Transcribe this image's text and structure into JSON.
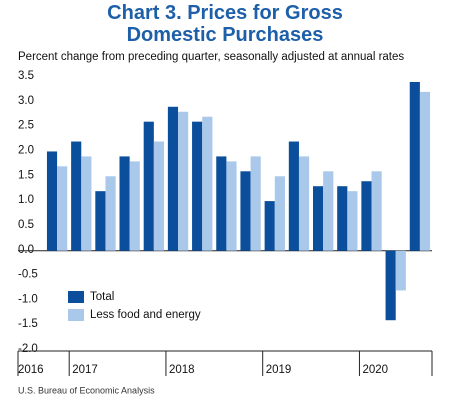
{
  "chart_data": {
    "type": "bar",
    "title": "Chart 3. Prices for Gross Domestic Purchases",
    "subtitle": "Percent change from preceding quarter, seasonally adjusted at annual rates",
    "source": "U.S. Bureau of Economic Analysis",
    "categories": [
      "2016",
      "2017",
      null,
      null,
      null,
      "2018",
      null,
      null,
      null,
      "2019",
      null,
      null,
      null,
      "2020",
      null,
      null
    ],
    "series": [
      {
        "name": "Total",
        "color": "#0b4f9c",
        "values": [
          2.0,
          2.2,
          1.2,
          1.9,
          2.6,
          2.9,
          2.6,
          1.9,
          1.6,
          1.0,
          2.2,
          1.3,
          1.3,
          1.4,
          -1.4,
          3.4
        ]
      },
      {
        "name": "Less food and energy",
        "color": "#a9c8ea",
        "values": [
          1.7,
          1.9,
          1.5,
          1.8,
          2.2,
          2.8,
          2.7,
          1.8,
          1.9,
          1.5,
          1.9,
          1.6,
          1.2,
          1.6,
          -0.8,
          3.2
        ]
      }
    ],
    "ylim": [
      -2.0,
      3.5
    ],
    "yticks": [
      3.5,
      {
        "value": 3.0,
        "label": "3.0"
      },
      2.5,
      {
        "value": 2.0,
        "label": "2.0"
      },
      1.5,
      {
        "value": 1.0,
        "label": "1.0"
      },
      0.5,
      {
        "value": 0.0,
        "label": "0.0"
      },
      -0.5,
      {
        "value": -1.0,
        "label": "-1.0"
      },
      -1.5,
      {
        "value": -2.0,
        "label": "-2.0"
      }
    ],
    "legend": "lower-left"
  }
}
